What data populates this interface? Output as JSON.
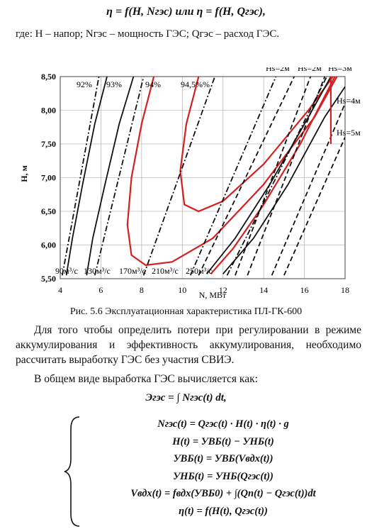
{
  "formula_top": "η = f(H, Nгэс) или η = f(H, Qгэс),",
  "definitions": "где: H – напор; Nгэс – мощность ГЭС;  Qгэс – расход ГЭС.",
  "chart_data": {
    "type": "line",
    "xlabel": "N, МВт",
    "ylabel": "H, м",
    "xlim": [
      4,
      18
    ],
    "xticks": [
      4,
      6,
      8,
      10,
      12,
      14,
      16,
      18
    ],
    "ylim": [
      5.5,
      8.5
    ],
    "yticks": [
      {
        "value": 5.5,
        "label": "5,50"
      },
      {
        "value": 6,
        "label": "6,00"
      },
      {
        "value": 6.5,
        "label": "6,50"
      },
      {
        "value": 7,
        "label": "7,00"
      },
      {
        "value": 7.5,
        "label": "7,50"
      },
      {
        "value": 8,
        "label": "8,00"
      },
      {
        "value": 8.5,
        "label": "8,50"
      }
    ],
    "grid": true,
    "series": [
      {
        "name": "92%",
        "color": "#111111",
        "style": "solid",
        "x": [
          4.3,
          4.6,
          5.1,
          5.7,
          6.3
        ],
        "values": [
          5.55,
          6.1,
          6.9,
          7.8,
          8.5
        ]
      },
      {
        "name": "93%",
        "color": "#111111",
        "style": "solid",
        "x": [
          5.3,
          5.6,
          6.2,
          6.9,
          7.6
        ],
        "values": [
          5.55,
          6.1,
          6.9,
          7.8,
          8.5
        ]
      },
      {
        "name": "94%",
        "color": "#d42020",
        "style": "solid",
        "x": [
          8.6,
          8.0,
          7.5,
          7.3,
          7.5,
          8.2,
          9.5,
          11.5,
          14,
          16.5,
          17.6
        ],
        "values": [
          8.5,
          7.8,
          7.0,
          6.3,
          5.85,
          5.7,
          5.75,
          6.1,
          6.9,
          7.9,
          8.5
        ]
      },
      {
        "name": "94,5%%",
        "color": "#d42020",
        "style": "solid",
        "x": [
          10.8,
          10.2,
          9.9,
          10.1,
          10.8,
          12,
          14,
          16.2,
          17.4
        ],
        "values": [
          8.5,
          7.8,
          7.1,
          6.6,
          6.5,
          6.65,
          7.2,
          8.0,
          8.5
        ]
      },
      {
        "color": "#d42020",
        "style": "solid",
        "x": [
          11.4,
          12.5,
          14,
          15.8,
          17.5
        ],
        "values": [
          5.57,
          5.95,
          6.6,
          7.5,
          8.5
        ]
      },
      {
        "color": "#111111",
        "style": "solid",
        "x": [
          11.2,
          12.6,
          14.3,
          16.2,
          17.3
        ],
        "values": [
          5.57,
          6.1,
          6.9,
          7.9,
          8.5
        ]
      },
      {
        "color": "#111111",
        "style": "solid",
        "x": [
          12,
          13.5,
          15.2,
          17,
          18
        ],
        "values": [
          5.57,
          6.1,
          6.9,
          7.9,
          8.35
        ]
      },
      {
        "name": "90м³/с",
        "color": "#111111",
        "style": "dashdot",
        "x": [
          4.1,
          5.9
        ],
        "values": [
          5.55,
          8.5
        ]
      },
      {
        "name": "130м³/с",
        "color": "#111111",
        "style": "dashdot",
        "x": [
          5.7,
          8.1
        ],
        "values": [
          5.55,
          8.5
        ]
      },
      {
        "name": "170м³/с",
        "color": "#111111",
        "style": "dashdot",
        "x": [
          8.1,
          11.6
        ],
        "values": [
          5.55,
          8.5
        ]
      },
      {
        "name": "210м³/с",
        "color": "#111111",
        "style": "dashdot",
        "x": [
          10.4,
          14.6
        ],
        "values": [
          5.55,
          8.5
        ]
      },
      {
        "name": "250м³/с",
        "color": "#111111",
        "style": "dashdot",
        "x": [
          12.2,
          17.1
        ],
        "values": [
          5.55,
          8.5
        ]
      },
      {
        "name": "Hs=2м",
        "color": "#111111",
        "style": "dashed",
        "x": [
          10.8,
          15.5
        ],
        "values": [
          5.55,
          8.5
        ]
      },
      {
        "name": "Hs=2м",
        "color": "#111111",
        "style": "dashed",
        "x": [
          12.6,
          16.3
        ],
        "values": [
          5.55,
          8.5
        ]
      },
      {
        "name": "Hs=3м",
        "color": "#111111",
        "style": "dashed",
        "x": [
          13.2,
          17.0
        ],
        "values": [
          5.55,
          8.5
        ]
      },
      {
        "name": "Hs=4м",
        "color": "#111111",
        "style": "dashed",
        "x": [
          14.4,
          18
        ],
        "values": [
          5.55,
          8.1
        ]
      },
      {
        "name": "Hs=5м",
        "color": "#111111",
        "style": "dashed",
        "x": [
          15,
          18
        ],
        "values": [
          5.55,
          7.6
        ]
      },
      {
        "color": "#d42020",
        "style": "solid",
        "x": [
          17.3,
          17.3
        ],
        "values": [
          7.5,
          8.5
        ]
      }
    ]
  },
  "caption": "Рис. 5.6 Эксплуатационная характеристика ПЛ-ГК-600",
  "paragraphs": [
    "Для того чтобы определить потери при регулировании в режиме аккумулирования и эффективность аккумулирования, необходимо рассчитать выработку ГЭС без участия СВИЭ.",
    "В общем виде выработка ГЭС вычисляется как:"
  ],
  "energy_formula": "Эгэс = ∫ Nгэс(t) dt,",
  "system": [
    "Nгэс(t) = Qгэс(t) · H(t) · η(t) · g",
    "H(t) = УВБ(t) − УНБ(t)",
    "УВБ(t) = УВБ(Vвдх(t))",
    "УНБ(t) = УНБ(Qгэс(t))",
    "Vвдх(t) = fвдх(УВБ0) + ∫(Qп(t) − Qгэс(t))dt",
    "η(t) = f(H(t), Qгэс(t))"
  ]
}
